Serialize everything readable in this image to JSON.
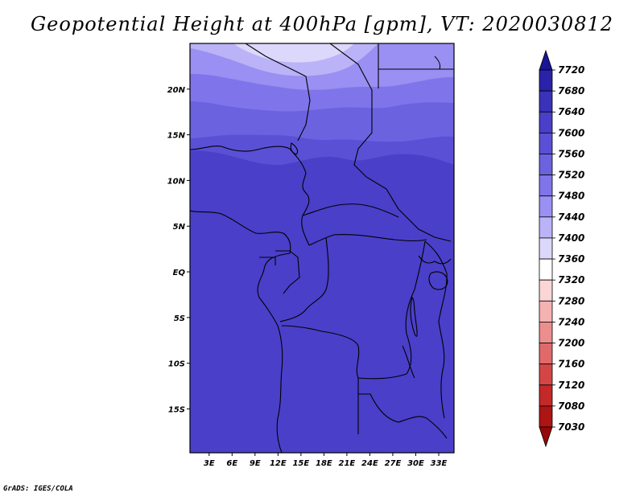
{
  "title": "Geopotential Height at 400hPa [gpm], VT: 2020030812",
  "credit": "GrADS: IGES/COLA",
  "map": {
    "lat_labels": [
      "20N",
      "15N",
      "10N",
      "5N",
      "EQ",
      "5S",
      "10S",
      "15S"
    ],
    "lat_values": [
      20,
      15,
      10,
      5,
      0,
      -5,
      -10,
      -15
    ],
    "lon_labels": [
      "3E",
      "6E",
      "9E",
      "12E",
      "15E",
      "18E",
      "21E",
      "24E",
      "27E",
      "30E",
      "33E"
    ],
    "lon_values": [
      3,
      6,
      9,
      12,
      15,
      18,
      21,
      24,
      27,
      30,
      33
    ],
    "lon_range": [
      0.5,
      35
    ],
    "lat_range": [
      -19.8,
      25
    ]
  },
  "colorbar": {
    "labels": [
      "7720",
      "7680",
      "7640",
      "7600",
      "7560",
      "7520",
      "7480",
      "7440",
      "7400",
      "7360",
      "7320",
      "7280",
      "7240",
      "7200",
      "7160",
      "7120",
      "7080",
      "7030"
    ],
    "colors": [
      "#1a1496",
      "#2a22a8",
      "#3a32b8",
      "#4a3fc8",
      "#5a50d6",
      "#6b62e0",
      "#8074ea",
      "#9a8ff2",
      "#bbb3f7",
      "#dcd8fb",
      "#ffffff",
      "#fbd6d6",
      "#f4b2b2",
      "#eb8e8e",
      "#e06a6a",
      "#d44646",
      "#c42828",
      "#ad1414",
      "#940808"
    ]
  },
  "colors": {
    "base": "#4a3fc8",
    "band1": "#5a50d6",
    "band2": "#6b62e0",
    "band3": "#8074ea",
    "band4": "#9a8ff2",
    "band5": "#bbb3f7",
    "band6": "#dcd8fb"
  }
}
